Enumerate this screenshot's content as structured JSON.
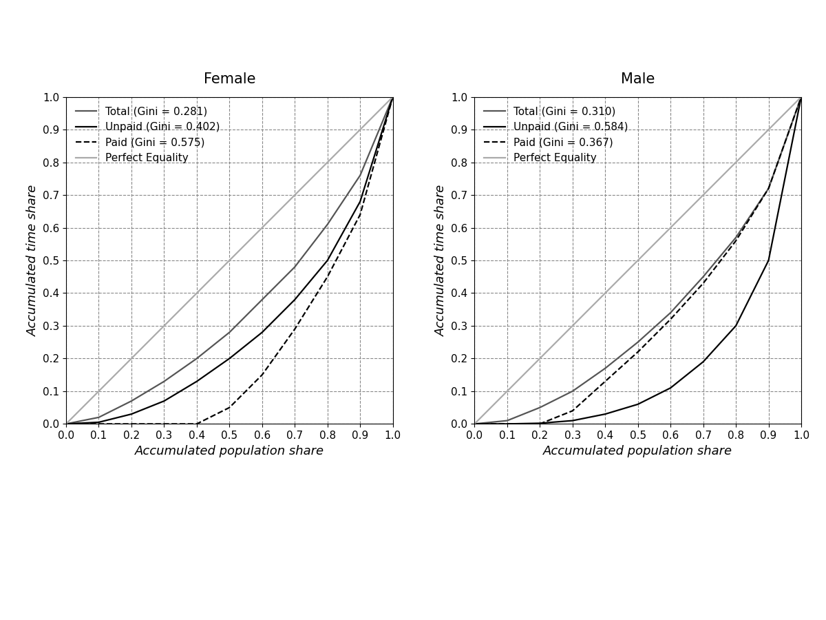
{
  "chart_data": [
    {
      "type": "line",
      "title": "Female",
      "x_label": "Accumulated population share",
      "y_label": "Accumulated time share",
      "x": [
        0,
        0.1,
        0.2,
        0.3,
        0.4,
        0.5,
        0.6,
        0.7,
        0.8,
        0.9,
        1
      ],
      "series": [
        {
          "name": "Total (Gini = 0.281)",
          "color": "#555555",
          "line_style": "solid",
          "values": [
            0,
            0.02,
            0.07,
            0.13,
            0.2,
            0.28,
            0.38,
            0.48,
            0.61,
            0.76,
            1
          ]
        },
        {
          "name": "Unpaid (Gini = 0.402)",
          "color": "#000000",
          "line_style": "solid",
          "values": [
            0,
            0.005,
            0.03,
            0.07,
            0.13,
            0.2,
            0.28,
            0.38,
            0.5,
            0.68,
            1
          ]
        },
        {
          "name": "Paid (Gini = 0.575)",
          "color": "#000000",
          "line_style": "dashed",
          "values": [
            0,
            0,
            0,
            0,
            0,
            0.05,
            0.15,
            0.29,
            0.45,
            0.64,
            1
          ]
        },
        {
          "name": "Perfect Equality",
          "color": "#aaaaaa",
          "line_style": "solid",
          "values": [
            0,
            0.1,
            0.2,
            0.3,
            0.4,
            0.5,
            0.6,
            0.7,
            0.8,
            0.9,
            1
          ]
        }
      ],
      "xlim": [
        0,
        1
      ],
      "ylim": [
        0,
        1
      ],
      "xticks": [
        {
          "value": 0,
          "label": "0.0"
        },
        0.1,
        0.2,
        0.3,
        0.4,
        0.5,
        0.6,
        0.7,
        0.8,
        0.9,
        {
          "value": 1,
          "label": "1.0"
        }
      ],
      "yticks": [
        {
          "value": 0,
          "label": "0.0"
        },
        0.1,
        0.2,
        0.3,
        0.4,
        0.5,
        0.6,
        0.7,
        0.8,
        0.9,
        {
          "value": 1,
          "label": "1.0"
        }
      ],
      "grid": true,
      "legend": "upper left"
    },
    {
      "type": "line",
      "title": "Male",
      "x_label": "Accumulated population share",
      "y_label": "Accumulated time share",
      "x": [
        0,
        0.1,
        0.2,
        0.3,
        0.4,
        0.5,
        0.6,
        0.7,
        0.8,
        0.9,
        1
      ],
      "series": [
        {
          "name": "Total (Gini = 0.310)",
          "color": "#555555",
          "line_style": "solid",
          "values": [
            0,
            0.01,
            0.05,
            0.1,
            0.17,
            0.25,
            0.34,
            0.45,
            0.57,
            0.72,
            1
          ]
        },
        {
          "name": "Unpaid (Gini = 0.584)",
          "color": "#000000",
          "line_style": "solid",
          "values": [
            0,
            0,
            0.002,
            0.01,
            0.03,
            0.06,
            0.11,
            0.19,
            0.3,
            0.5,
            1
          ]
        },
        {
          "name": "Paid (Gini = 0.367)",
          "color": "#000000",
          "line_style": "dashed",
          "values": [
            0,
            0,
            0,
            0.04,
            0.13,
            0.22,
            0.32,
            0.43,
            0.56,
            0.72,
            1
          ]
        },
        {
          "name": "Perfect Equality",
          "color": "#aaaaaa",
          "line_style": "solid",
          "values": [
            0,
            0.1,
            0.2,
            0.3,
            0.4,
            0.5,
            0.6,
            0.7,
            0.8,
            0.9,
            1
          ]
        }
      ],
      "xlim": [
        0,
        1
      ],
      "ylim": [
        0,
        1
      ],
      "xticks": [
        {
          "value": 0,
          "label": "0.0"
        },
        0.1,
        0.2,
        0.3,
        0.4,
        0.5,
        0.6,
        0.7,
        0.8,
        0.9,
        {
          "value": 1,
          "label": "1.0"
        }
      ],
      "yticks": [
        {
          "value": 0,
          "label": "0.0"
        },
        0.1,
        0.2,
        0.3,
        0.4,
        0.5,
        0.6,
        0.7,
        0.8,
        0.9,
        {
          "value": 1,
          "label": "1.0"
        }
      ],
      "grid": true,
      "legend": "upper left"
    }
  ]
}
